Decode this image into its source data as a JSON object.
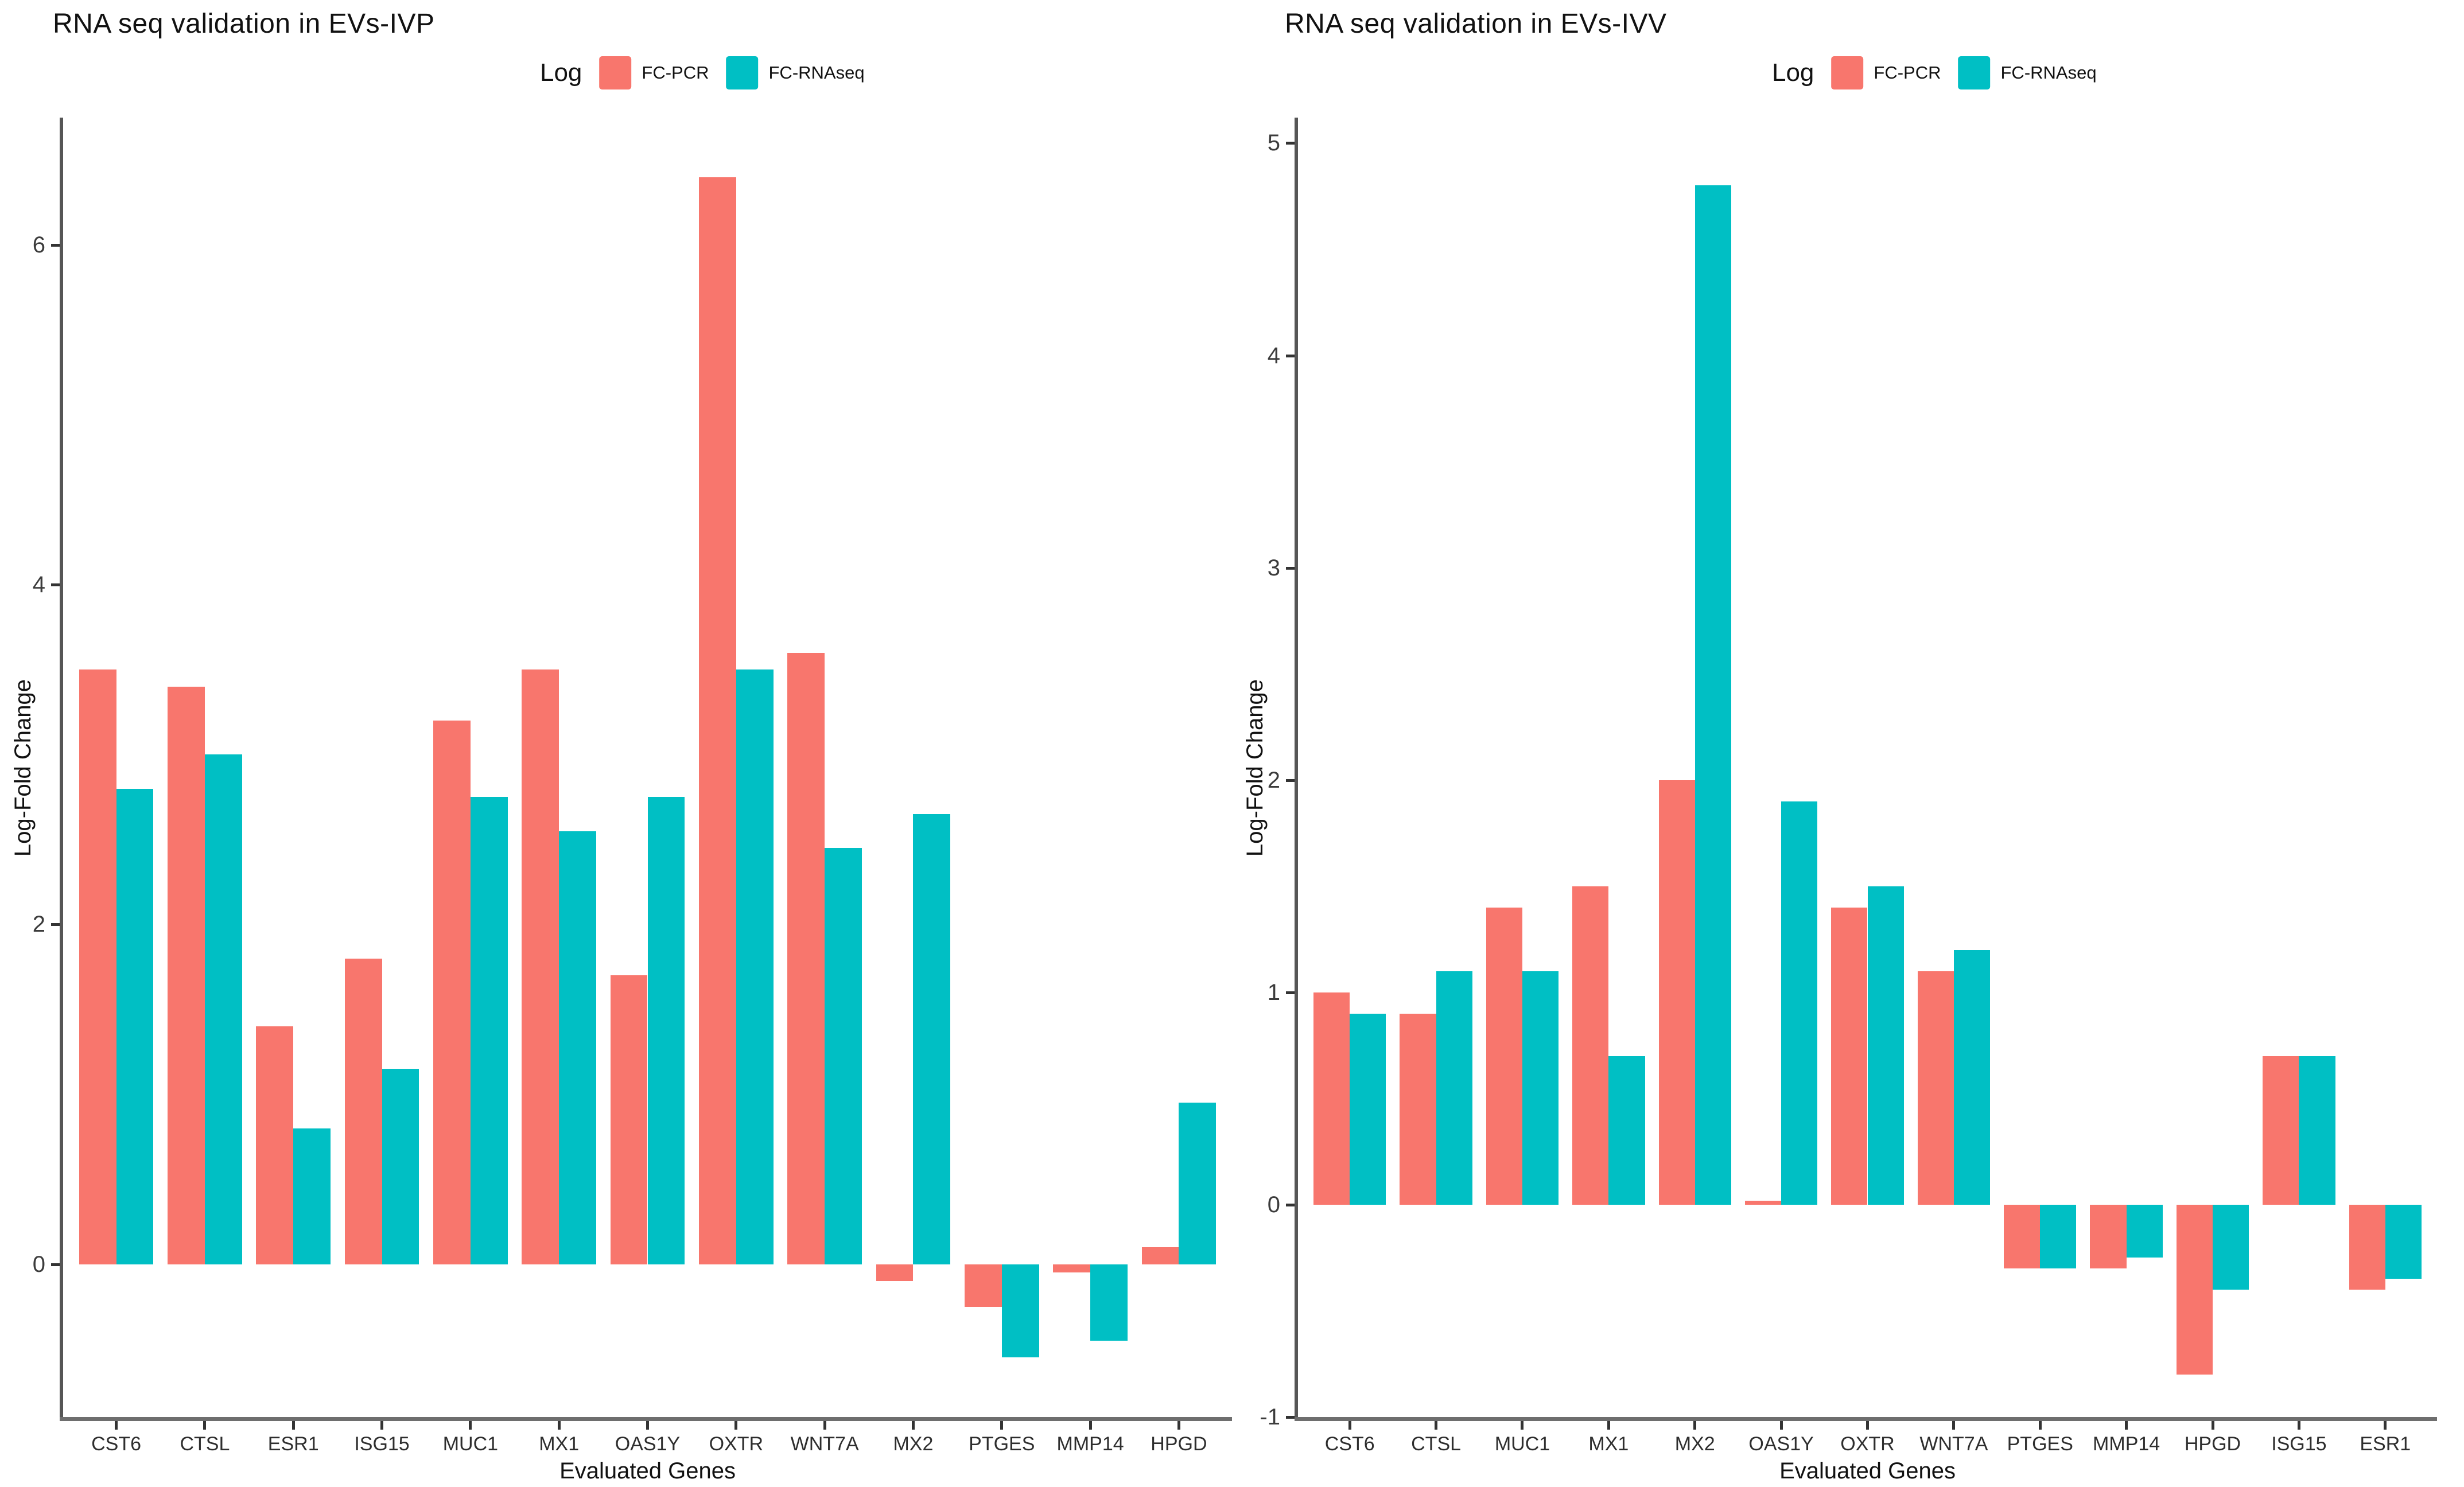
{
  "figure": {
    "background": "#ffffff"
  },
  "chart_data": [
    {
      "id": "evs-ivp",
      "type": "bar",
      "title": "RNA seq validation in EVs-IVP",
      "legend": {
        "title": "Log",
        "position": "top"
      },
      "xlabel": "Evaluated Genes",
      "ylabel": "Log-Fold Change",
      "grid": false,
      "categories": [
        "CST6",
        "CTSL",
        "ESR1",
        "ISG15",
        "MUC1",
        "MX1",
        "OAS1Y",
        "OXTR",
        "WNT7A",
        "MX2",
        "PTGES",
        "MMP14",
        "HPGD"
      ],
      "series": [
        {
          "name": "FC-PCR",
          "color": "#F8766D",
          "values": [
            3.5,
            3.4,
            1.4,
            1.8,
            3.2,
            3.5,
            1.7,
            6.4,
            3.6,
            -0.1,
            -0.25,
            -0.05,
            0.1
          ]
        },
        {
          "name": "FC-RNAseq",
          "color": "#00BFC4",
          "values": [
            2.8,
            3.0,
            0.8,
            1.15,
            2.75,
            2.55,
            2.75,
            3.5,
            2.45,
            2.65,
            -0.55,
            -0.45,
            0.95
          ]
        }
      ],
      "yticks": [
        0,
        2,
        4,
        6
      ],
      "ylim": [
        -0.9,
        6.75
      ]
    },
    {
      "id": "evs-ivv",
      "type": "bar",
      "title": "RNA seq validation in EVs-IVV",
      "legend": {
        "title": "Log",
        "position": "top"
      },
      "xlabel": "Evaluated Genes",
      "ylabel": "Log-Fold Change",
      "grid": false,
      "categories": [
        "CST6",
        "CTSL",
        "MUC1",
        "MX1",
        "MX2",
        "OAS1Y",
        "OXTR",
        "WNT7A",
        "PTGES",
        "MMP14",
        "HPGD",
        "ISG15",
        "ESR1"
      ],
      "series": [
        {
          "name": "FC-PCR",
          "color": "#F8766D",
          "values": [
            1.0,
            0.9,
            1.4,
            1.5,
            2.0,
            0.02,
            1.4,
            1.1,
            -0.3,
            -0.3,
            -0.8,
            0.7,
            -0.4
          ]
        },
        {
          "name": "FC-RNAseq",
          "color": "#00BFC4",
          "values": [
            0.9,
            1.1,
            1.1,
            0.7,
            4.8,
            1.9,
            1.5,
            1.2,
            -0.3,
            -0.25,
            -0.4,
            0.7,
            -0.35
          ]
        }
      ],
      "yticks": [
        -1,
        0,
        1,
        2,
        3,
        4,
        5
      ],
      "ylim": [
        -1.0,
        5.12
      ]
    }
  ]
}
